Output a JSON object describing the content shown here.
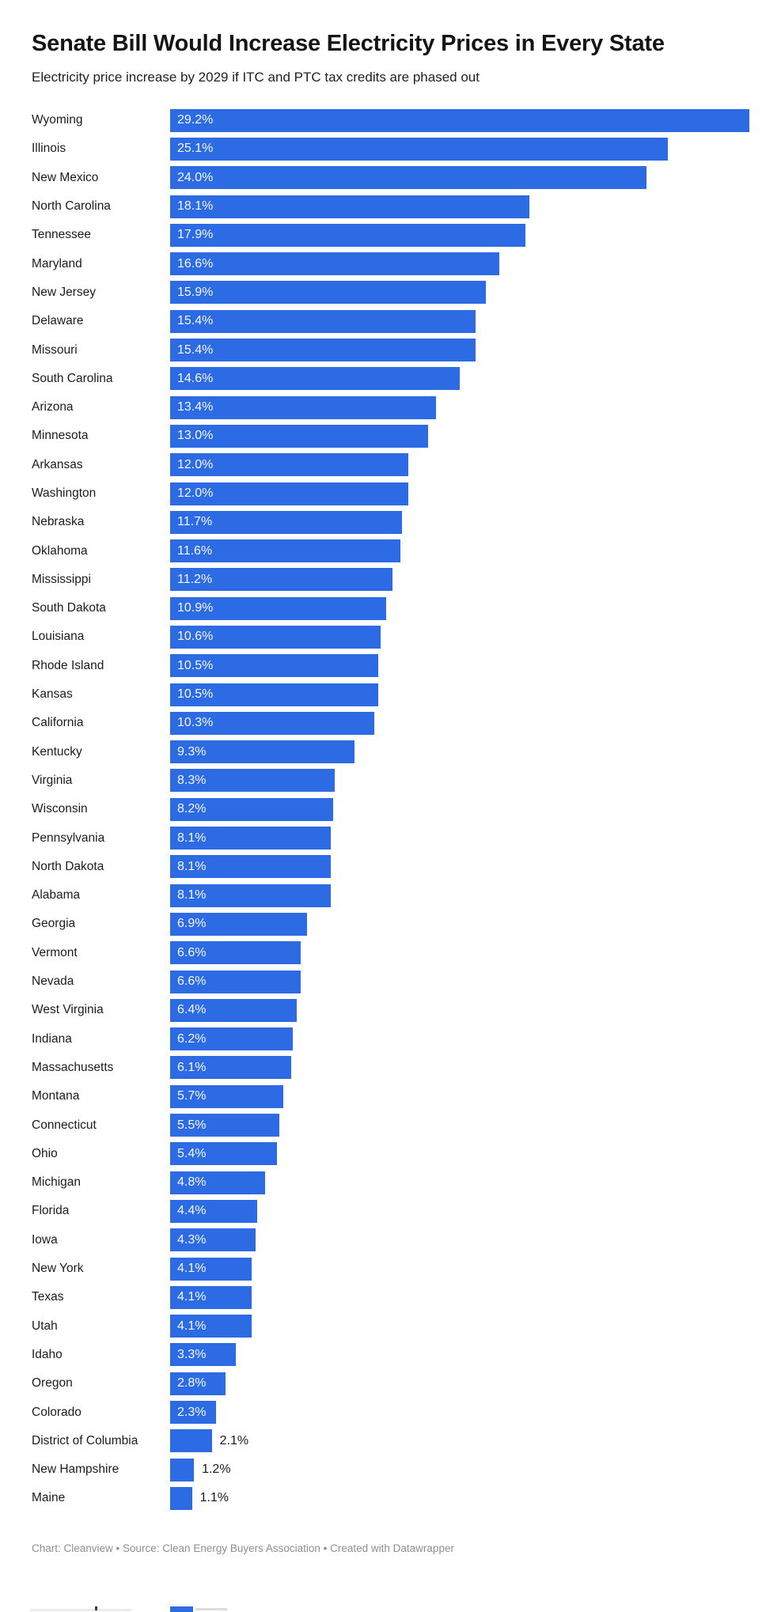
{
  "header": {
    "title": "Senate Bill Would Increase Electricity Prices in Every State",
    "subtitle": "Electricity price increase by 2029 if ITC and PTC tax credits are phased out"
  },
  "chart_data": {
    "type": "bar",
    "orientation": "horizontal",
    "title": "Senate Bill Would Increase Electricity Prices in Every State",
    "subtitle": "Electricity price increase by 2029 if ITC and PTC tax credits are phased out",
    "unit": "%",
    "x_max": 29.2,
    "bar_color": "#2d6be4",
    "grid": false,
    "legend": false,
    "categories": [
      "Wyoming",
      "Illinois",
      "New Mexico",
      "North Carolina",
      "Tennessee",
      "Maryland",
      "New Jersey",
      "Delaware",
      "Missouri",
      "South Carolina",
      "Arizona",
      "Minnesota",
      "Arkansas",
      "Washington",
      "Nebraska",
      "Oklahoma",
      "Mississippi",
      "South Dakota",
      "Louisiana",
      "Rhode Island",
      "Kansas",
      "California",
      "Kentucky",
      "Virginia",
      "Wisconsin",
      "Pennsylvania",
      "North Dakota",
      "Alabama",
      "Georgia",
      "Vermont",
      "Nevada",
      "West Virginia",
      "Indiana",
      "Massachusetts",
      "Montana",
      "Connecticut",
      "Ohio",
      "Michigan",
      "Florida",
      "Iowa",
      "New York",
      "Texas",
      "Utah",
      "Idaho",
      "Oregon",
      "Colorado",
      "District of Columbia",
      "New Hampshire",
      "Maine"
    ],
    "values": [
      29.2,
      25.1,
      24.0,
      18.1,
      17.9,
      16.6,
      15.9,
      15.4,
      15.4,
      14.6,
      13.4,
      13.0,
      12.0,
      12.0,
      11.7,
      11.6,
      11.2,
      10.9,
      10.6,
      10.5,
      10.5,
      10.3,
      9.3,
      8.3,
      8.2,
      8.1,
      8.1,
      8.1,
      6.9,
      6.6,
      6.6,
      6.4,
      6.2,
      6.1,
      5.7,
      5.5,
      5.4,
      4.8,
      4.4,
      4.3,
      4.1,
      4.1,
      4.1,
      3.3,
      2.8,
      2.3,
      2.1,
      1.2,
      1.1
    ],
    "value_labels": [
      "29.2%",
      "25.1%",
      "24.0%",
      "18.1%",
      "17.9%",
      "16.6%",
      "15.9%",
      "15.4%",
      "15.4%",
      "14.6%",
      "13.4%",
      "13.0%",
      "12.0%",
      "12.0%",
      "11.7%",
      "11.6%",
      "11.2%",
      "10.9%",
      "10.6%",
      "10.5%",
      "10.5%",
      "10.3%",
      "9.3%",
      "8.3%",
      "8.2%",
      "8.1%",
      "8.1%",
      "8.1%",
      "6.9%",
      "6.6%",
      "6.6%",
      "6.4%",
      "6.2%",
      "6.1%",
      "5.7%",
      "5.5%",
      "5.4%",
      "4.8%",
      "4.4%",
      "4.3%",
      "4.1%",
      "4.1%",
      "4.1%",
      "3.3%",
      "2.8%",
      "2.3%",
      "2.1%",
      "1.2%",
      "1.1%"
    ]
  },
  "footer": {
    "credit": "Chart: Cleanview • Source: Clean Energy Buyers Association  • Created with Datawrapper"
  }
}
